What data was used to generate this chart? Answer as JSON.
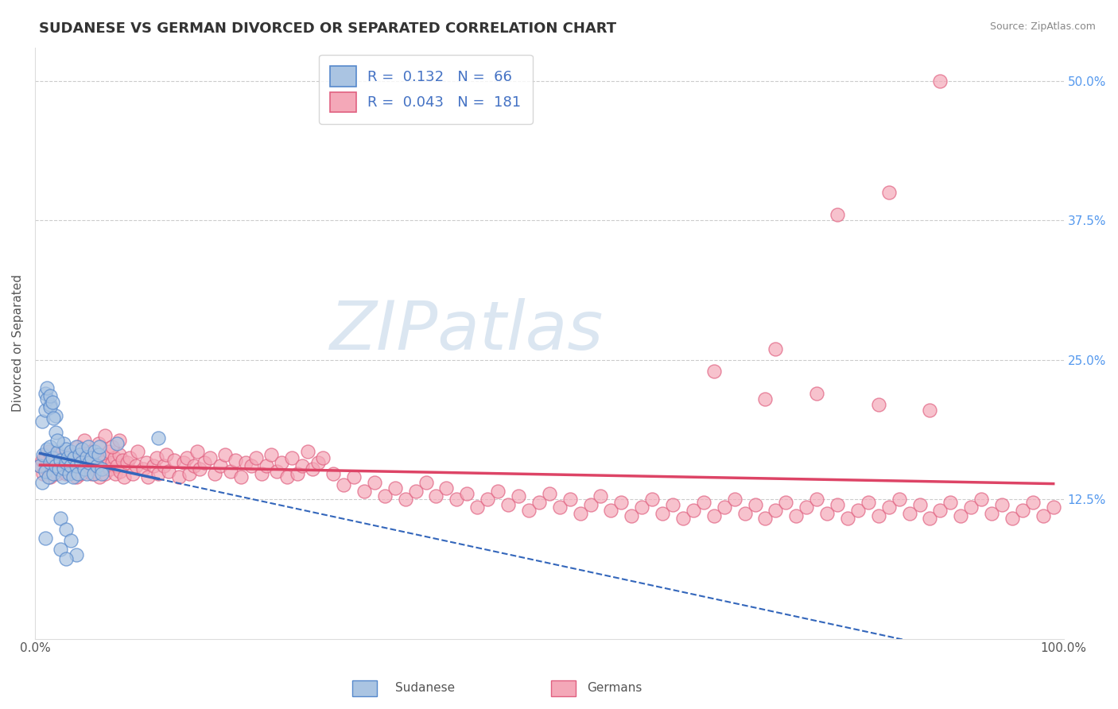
{
  "title": "SUDANESE VS GERMAN DIVORCED OR SEPARATED CORRELATION CHART",
  "source_text": "Source: ZipAtlas.com",
  "ylabel": "Divorced or Separated",
  "watermark": "ZIPatlas",
  "xlim": [
    0.0,
    1.0
  ],
  "ylim": [
    0.0,
    0.53
  ],
  "xticks": [
    0.0,
    1.0
  ],
  "xtick_labels": [
    "0.0%",
    "100.0%"
  ],
  "yticks": [
    0.125,
    0.25,
    0.375,
    0.5
  ],
  "ytick_labels": [
    "12.5%",
    "25.0%",
    "37.5%",
    "50.0%"
  ],
  "sudanese_R": 0.132,
  "sudanese_N": 66,
  "german_R": 0.043,
  "german_N": 181,
  "sudanese_color": "#aac4e2",
  "german_color": "#f4a8b8",
  "sudanese_edge_color": "#5588cc",
  "german_edge_color": "#e06080",
  "sudanese_line_color": "#3366bb",
  "german_line_color": "#dd4466",
  "background_color": "#ffffff",
  "grid_color": "#cccccc",
  "title_fontsize": 13,
  "axis_label_fontsize": 11,
  "tick_fontsize": 11,
  "legend_fontsize": 13,
  "watermark_color": "#d0dff0",
  "sudanese_x": [
    0.005,
    0.007,
    0.008,
    0.01,
    0.012,
    0.013,
    0.015,
    0.015,
    0.017,
    0.018,
    0.02,
    0.022,
    0.023,
    0.025,
    0.027,
    0.028,
    0.028,
    0.03,
    0.03,
    0.032,
    0.033,
    0.035,
    0.035,
    0.037,
    0.038,
    0.04,
    0.04,
    0.042,
    0.043,
    0.045,
    0.046,
    0.048,
    0.05,
    0.05,
    0.052,
    0.053,
    0.055,
    0.057,
    0.058,
    0.06,
    0.062,
    0.063,
    0.065,
    0.065,
    0.007,
    0.01,
    0.015,
    0.02,
    0.025,
    0.03,
    0.035,
    0.04,
    0.01,
    0.012,
    0.015,
    0.018,
    0.02,
    0.022,
    0.012,
    0.015,
    0.017,
    0.01,
    0.025,
    0.03,
    0.08,
    0.12
  ],
  "sudanese_y": [
    0.155,
    0.14,
    0.165,
    0.15,
    0.17,
    0.145,
    0.158,
    0.172,
    0.162,
    0.148,
    0.155,
    0.167,
    0.152,
    0.16,
    0.145,
    0.175,
    0.153,
    0.158,
    0.17,
    0.162,
    0.148,
    0.155,
    0.168,
    0.145,
    0.162,
    0.172,
    0.155,
    0.148,
    0.165,
    0.158,
    0.17,
    0.152,
    0.163,
    0.148,
    0.172,
    0.158,
    0.162,
    0.148,
    0.168,
    0.155,
    0.165,
    0.172,
    0.152,
    0.148,
    0.195,
    0.205,
    0.21,
    0.2,
    0.108,
    0.098,
    0.088,
    0.075,
    0.22,
    0.215,
    0.208,
    0.198,
    0.185,
    0.178,
    0.225,
    0.218,
    0.212,
    0.09,
    0.08,
    0.072,
    0.175,
    0.18
  ],
  "german_x": [
    0.005,
    0.007,
    0.008,
    0.01,
    0.012,
    0.013,
    0.015,
    0.017,
    0.018,
    0.02,
    0.022,
    0.023,
    0.025,
    0.027,
    0.028,
    0.03,
    0.032,
    0.033,
    0.035,
    0.037,
    0.04,
    0.042,
    0.043,
    0.045,
    0.047,
    0.048,
    0.05,
    0.052,
    0.053,
    0.055,
    0.057,
    0.058,
    0.06,
    0.062,
    0.063,
    0.065,
    0.067,
    0.068,
    0.07,
    0.072,
    0.073,
    0.075,
    0.077,
    0.078,
    0.08,
    0.082,
    0.083,
    0.085,
    0.087,
    0.09,
    0.092,
    0.095,
    0.098,
    0.1,
    0.105,
    0.108,
    0.11,
    0.115,
    0.118,
    0.12,
    0.125,
    0.128,
    0.13,
    0.135,
    0.14,
    0.145,
    0.148,
    0.15,
    0.155,
    0.158,
    0.16,
    0.165,
    0.17,
    0.175,
    0.18,
    0.185,
    0.19,
    0.195,
    0.2,
    0.205,
    0.21,
    0.215,
    0.22,
    0.225,
    0.23,
    0.235,
    0.24,
    0.245,
    0.25,
    0.255,
    0.26,
    0.265,
    0.27,
    0.275,
    0.28,
    0.29,
    0.3,
    0.31,
    0.32,
    0.33,
    0.34,
    0.35,
    0.36,
    0.37,
    0.38,
    0.39,
    0.4,
    0.41,
    0.42,
    0.43,
    0.44,
    0.45,
    0.46,
    0.47,
    0.48,
    0.49,
    0.5,
    0.51,
    0.52,
    0.53,
    0.54,
    0.55,
    0.56,
    0.57,
    0.58,
    0.59,
    0.6,
    0.61,
    0.62,
    0.63,
    0.64,
    0.65,
    0.66,
    0.67,
    0.68,
    0.69,
    0.7,
    0.71,
    0.72,
    0.73,
    0.74,
    0.75,
    0.76,
    0.77,
    0.78,
    0.79,
    0.8,
    0.81,
    0.82,
    0.83,
    0.84,
    0.85,
    0.86,
    0.87,
    0.88,
    0.89,
    0.9,
    0.91,
    0.92,
    0.93,
    0.94,
    0.95,
    0.96,
    0.97,
    0.98,
    0.99,
    0.035,
    0.042,
    0.048,
    0.055,
    0.062,
    0.068,
    0.075,
    0.082,
    0.71,
    0.76,
    0.82,
    0.87,
    0.78,
    0.83,
    0.66,
    0.72,
    0.88
  ],
  "german_y": [
    0.155,
    0.16,
    0.148,
    0.162,
    0.152,
    0.168,
    0.145,
    0.158,
    0.155,
    0.162,
    0.148,
    0.165,
    0.152,
    0.158,
    0.162,
    0.148,
    0.155,
    0.165,
    0.15,
    0.16,
    0.145,
    0.158,
    0.162,
    0.148,
    0.155,
    0.168,
    0.152,
    0.158,
    0.162,
    0.148,
    0.155,
    0.165,
    0.15,
    0.16,
    0.145,
    0.158,
    0.162,
    0.148,
    0.155,
    0.168,
    0.152,
    0.158,
    0.162,
    0.148,
    0.155,
    0.165,
    0.15,
    0.16,
    0.145,
    0.158,
    0.162,
    0.148,
    0.155,
    0.168,
    0.152,
    0.158,
    0.145,
    0.155,
    0.162,
    0.148,
    0.155,
    0.165,
    0.15,
    0.16,
    0.145,
    0.158,
    0.162,
    0.148,
    0.155,
    0.168,
    0.152,
    0.158,
    0.162,
    0.148,
    0.155,
    0.165,
    0.15,
    0.16,
    0.145,
    0.158,
    0.155,
    0.162,
    0.148,
    0.155,
    0.165,
    0.15,
    0.158,
    0.145,
    0.162,
    0.148,
    0.155,
    0.168,
    0.152,
    0.158,
    0.162,
    0.148,
    0.138,
    0.145,
    0.132,
    0.14,
    0.128,
    0.135,
    0.125,
    0.132,
    0.14,
    0.128,
    0.135,
    0.125,
    0.13,
    0.118,
    0.125,
    0.132,
    0.12,
    0.128,
    0.115,
    0.122,
    0.13,
    0.118,
    0.125,
    0.112,
    0.12,
    0.128,
    0.115,
    0.122,
    0.11,
    0.118,
    0.125,
    0.112,
    0.12,
    0.108,
    0.115,
    0.122,
    0.11,
    0.118,
    0.125,
    0.112,
    0.12,
    0.108,
    0.115,
    0.122,
    0.11,
    0.118,
    0.125,
    0.112,
    0.12,
    0.108,
    0.115,
    0.122,
    0.11,
    0.118,
    0.125,
    0.112,
    0.12,
    0.108,
    0.115,
    0.122,
    0.11,
    0.118,
    0.125,
    0.112,
    0.12,
    0.108,
    0.115,
    0.122,
    0.11,
    0.118,
    0.165,
    0.172,
    0.178,
    0.168,
    0.175,
    0.182,
    0.172,
    0.178,
    0.215,
    0.22,
    0.21,
    0.205,
    0.38,
    0.4,
    0.24,
    0.26,
    0.5
  ]
}
